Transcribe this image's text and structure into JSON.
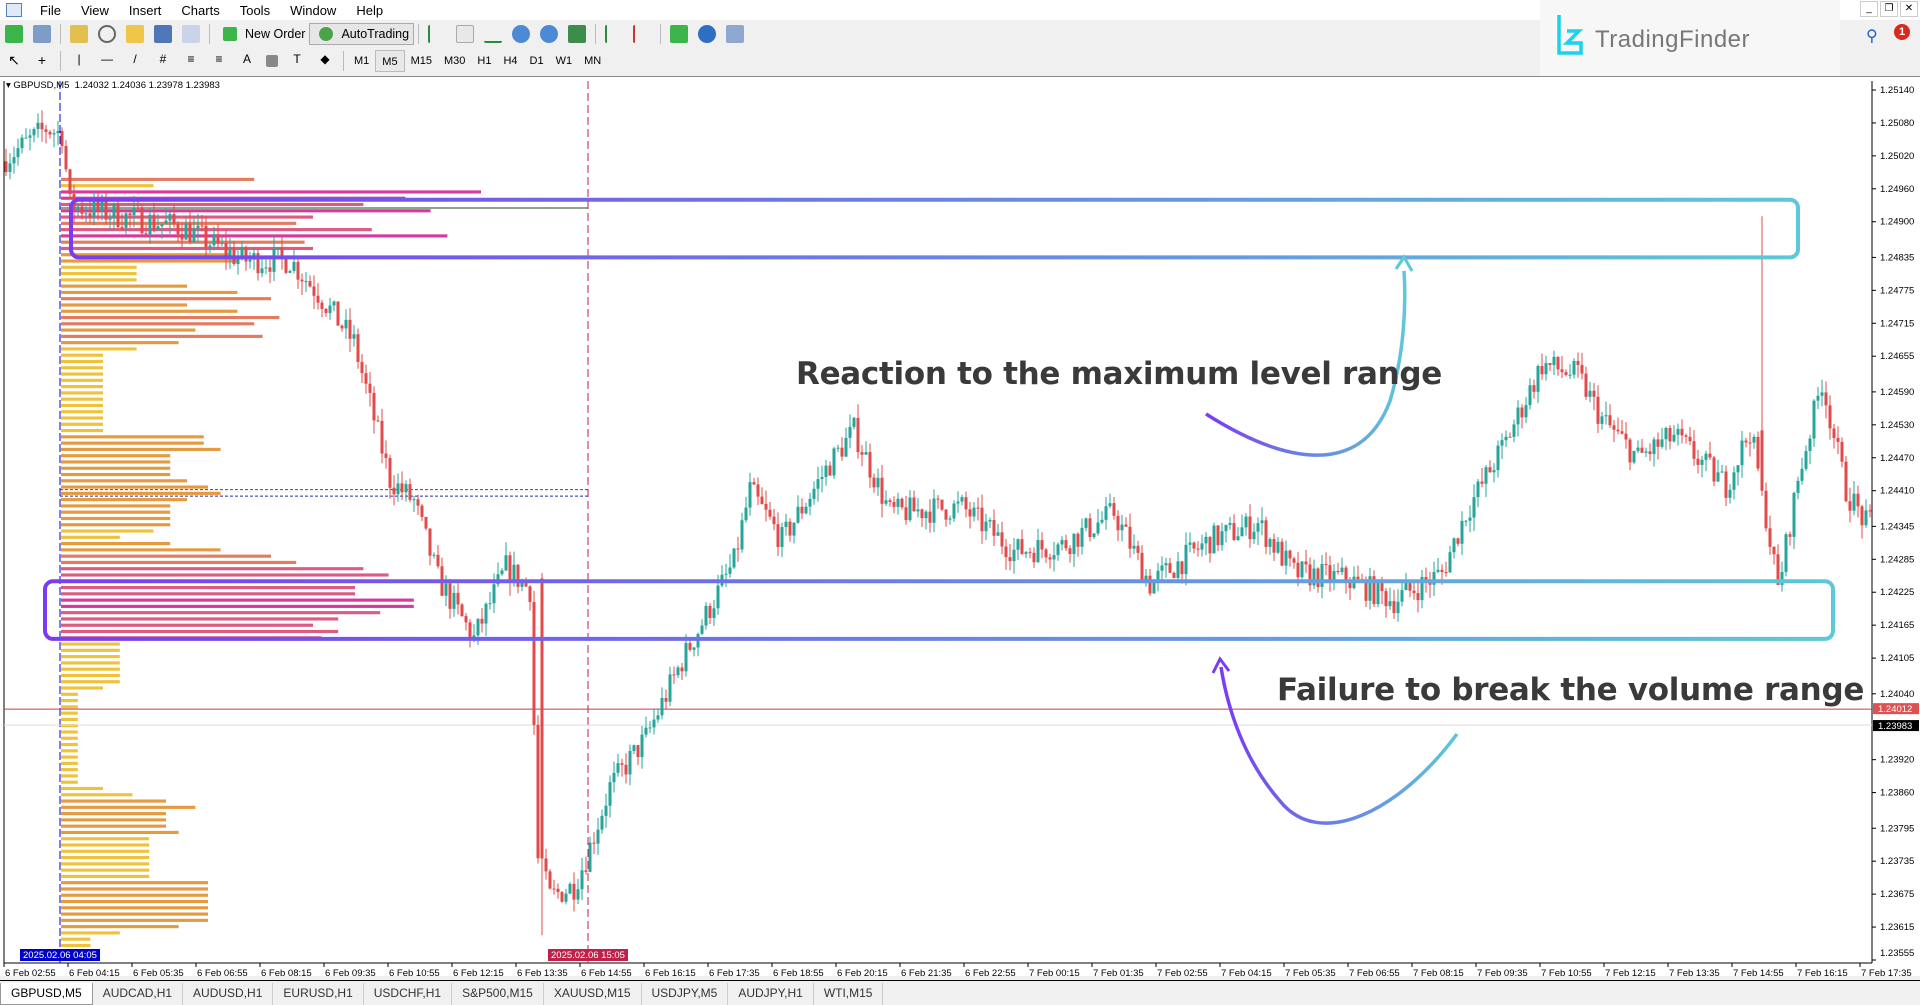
{
  "menu": [
    "File",
    "View",
    "Insert",
    "Charts",
    "Tools",
    "Window",
    "Help"
  ],
  "toolbar": {
    "new_order": "New Order",
    "autotrading": "AutoTrading",
    "timeframes": [
      "M1",
      "M5",
      "M15",
      "M30",
      "H1",
      "H4",
      "D1",
      "W1",
      "MN"
    ],
    "active_timeframe": "M5"
  },
  "brand": {
    "name": "TradingFinder",
    "color": "#19d3ea"
  },
  "notifications": {
    "count": "1"
  },
  "chart_header": {
    "symbol": "GBPUSD,M5",
    "ohlc": "1.24032 1.24036 1.23978 1.23983"
  },
  "annotations": {
    "reaction": "Reaction to the maximum level range",
    "failure": "Failure to break the volume range"
  },
  "tabs": [
    "GBPUSD,M5",
    "AUDCAD,H1",
    "AUDUSD,H1",
    "EURUSD,H1",
    "USDCHF,H1",
    "S&P500,M15",
    "XAUUSD,M15",
    "USDJPY,M5",
    "AUDJPY,H1",
    "WTI,M15"
  ],
  "active_tab": "GBPUSD,M5",
  "chart_data": {
    "type": "candlestick",
    "symbol": "GBPUSD",
    "timeframe": "M5",
    "ylim": [
      1.23555,
      1.2514
    ],
    "y_ticks": [
      "1.25140",
      "1.25080",
      "1.25020",
      "1.24960",
      "1.24900",
      "1.24835",
      "1.24775",
      "1.24715",
      "1.24655",
      "1.24590",
      "1.24530",
      "1.24470",
      "1.24410",
      "1.24345",
      "1.24285",
      "1.24225",
      "1.24165",
      "1.24105",
      "1.24040",
      "1.23920",
      "1.23860",
      "1.23795",
      "1.23735",
      "1.23675",
      "1.23615",
      "1.23555"
    ],
    "x_ticks": [
      "6 Feb 02:55",
      "6 Feb 04:15",
      "6 Feb 05:35",
      "6 Feb 06:55",
      "6 Feb 08:15",
      "6 Feb 09:35",
      "6 Feb 10:55",
      "6 Feb 12:15",
      "6 Feb 13:35",
      "6 Feb 14:55",
      "6 Feb 16:15",
      "6 Feb 17:35",
      "6 Feb 18:55",
      "6 Feb 20:15",
      "6 Feb 21:35",
      "6 Feb 22:55",
      "7 Feb 00:15",
      "7 Feb 01:35",
      "7 Feb 02:55",
      "7 Feb 04:15",
      "7 Feb 05:35",
      "7 Feb 06:55",
      "7 Feb 08:15",
      "7 Feb 09:35",
      "7 Feb 10:55",
      "7 Feb 12:15",
      "7 Feb 13:35",
      "7 Feb 14:55",
      "7 Feb 16:15",
      "7 Feb 17:35"
    ],
    "price_path": [
      [
        "6 Feb 02:55",
        1.2501
      ],
      [
        "6 Feb 03:50",
        1.2507
      ],
      [
        "6 Feb 04:10",
        1.2506
      ],
      [
        "6 Feb 04:20",
        1.2493
      ],
      [
        "6 Feb 05:25",
        1.2491
      ],
      [
        "6 Feb 06:40",
        1.2489
      ],
      [
        "6 Feb 07:55",
        1.2483
      ],
      [
        "6 Feb 08:55",
        1.2483
      ],
      [
        "6 Feb 09:30",
        1.2477
      ],
      [
        "6 Feb 10:15",
        1.2468
      ],
      [
        "6 Feb 11:00",
        1.2443
      ],
      [
        "6 Feb 11:30",
        1.2439
      ],
      [
        "6 Feb 12:00",
        1.2425
      ],
      [
        "6 Feb 12:45",
        1.2414
      ],
      [
        "6 Feb 13:25",
        1.2427
      ],
      [
        "6 Feb 13:55",
        1.2423
      ],
      [
        "6 Feb 14:05",
        1.2374
      ],
      [
        "6 Feb 14:20",
        1.2367
      ],
      [
        "6 Feb 14:50",
        1.2369
      ],
      [
        "6 Feb 15:05",
        1.2374
      ],
      [
        "6 Feb 15:35",
        1.2387
      ],
      [
        "6 Feb 16:20",
        1.2396
      ],
      [
        "6 Feb 17:05",
        1.241
      ],
      [
        "6 Feb 18:10",
        1.2428
      ],
      [
        "6 Feb 18:30",
        1.2441
      ],
      [
        "6 Feb 19:10",
        1.2432
      ],
      [
        "6 Feb 20:10",
        1.2446
      ],
      [
        "6 Feb 20:40",
        1.2452
      ],
      [
        "6 Feb 21:25",
        1.2437
      ],
      [
        "6 Feb 22:55",
        1.2438
      ],
      [
        "7 Feb 00:00",
        1.243
      ],
      [
        "7 Feb 01:00",
        1.2431
      ],
      [
        "7 Feb 02:05",
        1.2437
      ],
      [
        "7 Feb 02:50",
        1.2424
      ],
      [
        "7 Feb 04:05",
        1.2432
      ],
      [
        "7 Feb 05:05",
        1.2435
      ],
      [
        "7 Feb 05:50",
        1.2426
      ],
      [
        "7 Feb 06:55",
        1.2425
      ],
      [
        "7 Feb 07:55",
        1.2421
      ],
      [
        "7 Feb 08:55",
        1.2426
      ],
      [
        "7 Feb 09:25",
        1.2437
      ],
      [
        "7 Feb 10:15",
        1.245
      ],
      [
        "7 Feb 11:00",
        1.2464
      ],
      [
        "7 Feb 11:45",
        1.2462
      ],
      [
        "7 Feb 12:15",
        1.2454
      ],
      [
        "7 Feb 13:00",
        1.2447
      ],
      [
        "7 Feb 13:45",
        1.2451
      ],
      [
        "7 Feb 14:50",
        1.2442
      ],
      [
        "7 Feb 15:20",
        1.2452
      ],
      [
        "7 Feb 15:35",
        1.2441
      ],
      [
        "7 Feb 15:55",
        1.2423
      ],
      [
        "7 Feb 16:20",
        1.2443
      ],
      [
        "7 Feb 16:50",
        1.2461
      ],
      [
        "7 Feb 17:20",
        1.2441
      ],
      [
        "7 Feb 17:45",
        1.2435
      ]
    ],
    "notable_bars": [
      {
        "time": "6 Feb 14:05",
        "open": 1.2425,
        "high": 1.2426,
        "low": 1.236,
        "close": 1.2374
      },
      {
        "time": "7 Feb 15:30",
        "open": 1.2452,
        "high": 1.2491,
        "low": 1.244,
        "close": 1.2441
      }
    ],
    "volume_profile": {
      "start": "2025.02.06 04:05",
      "end": "2025.02.06 15:05",
      "price_top": 1.2498,
      "price_bottom": 1.2355,
      "relative_volume": [
        46,
        22,
        100,
        82,
        72,
        88,
        60,
        56,
        74,
        92,
        58,
        60,
        40,
        42,
        18,
        18,
        18,
        30,
        42,
        50,
        30,
        42,
        52,
        46,
        32,
        48,
        28,
        18,
        10,
        10,
        10,
        10,
        10,
        10,
        10,
        10,
        10,
        10,
        10,
        10,
        10,
        34,
        34,
        38,
        26,
        26,
        26,
        26,
        30,
        35,
        38,
        30,
        26,
        26,
        26,
        26,
        22,
        14,
        26,
        38,
        50,
        56,
        72,
        78,
        74,
        70,
        70,
        84,
        84,
        76,
        66,
        60,
        66,
        62,
        14,
        14,
        14,
        14,
        14,
        14,
        14,
        10,
        4,
        4,
        4,
        4,
        4,
        4,
        4,
        4,
        4,
        4,
        4,
        4,
        4,
        4,
        4,
        10,
        17,
        25,
        32,
        25,
        25,
        25,
        28,
        21,
        21,
        21,
        21,
        21,
        21,
        21,
        35,
        35,
        35,
        35,
        35,
        35,
        35,
        28,
        14,
        7,
        7,
        7,
        4
      ],
      "poc_dashed_levels": [
        1.24412,
        1.244
      ]
    },
    "zones": [
      {
        "name": "maximum level range",
        "top": 1.2494,
        "bottom": 1.24835
      },
      {
        "name": "volume range",
        "top": 1.24245,
        "bottom": 1.2414
      }
    ],
    "bid_line": "1.24012",
    "ask_line": "1.23983",
    "period_markers": [
      "2025.02.06 04:05",
      "2025.02.06 15:05"
    ],
    "colors": {
      "bull": "#26a69a",
      "bear": "#e04a4a",
      "zone_start": "#7a3cf0",
      "zone_end": "#5cc8d8",
      "bid": "#c83c3c",
      "marker_start": "#0000cc",
      "marker_end": "#c0204a"
    }
  }
}
